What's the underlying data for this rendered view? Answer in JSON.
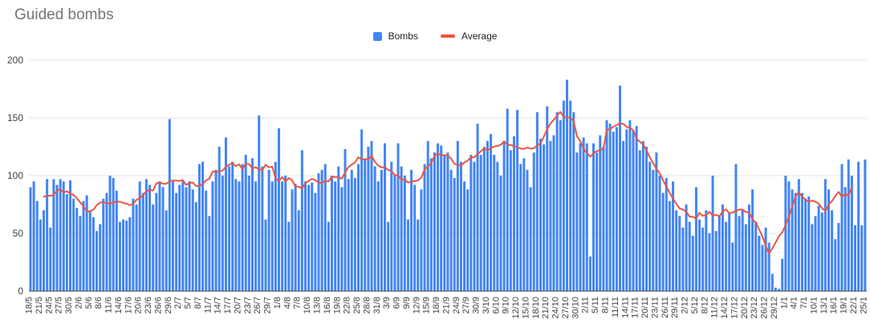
{
  "chart": {
    "title": "Guided bombs",
    "legend": {
      "bombs_label": "Bombs",
      "average_label": "Average"
    },
    "colors": {
      "bar": "#4285f4",
      "line": "#ea5545",
      "grid": "#e6e6e6",
      "baseline": "#424242",
      "axis_text": "#424242",
      "title_text": "#757575"
    }
  },
  "chart_data": {
    "type": "bar",
    "title": "Guided bombs",
    "xlabel": "",
    "ylabel": "",
    "ylim": [
      0,
      200
    ],
    "yticks": [
      0,
      50,
      100,
      150,
      200
    ],
    "grid": true,
    "legend_position": "top-center",
    "x_unit": "day",
    "tick_every": 3,
    "tick_labels": [
      "18/5",
      "21/5",
      "24/5",
      "27/5",
      "30/5",
      "2/6",
      "5/6",
      "8/6",
      "11/6",
      "14/6",
      "17/6",
      "20/6",
      "23/6",
      "26/6",
      "29/6",
      "2/7",
      "5/7",
      "8/7",
      "11/7",
      "14/7",
      "17/7",
      "20/7",
      "23/7",
      "26/7",
      "29/7",
      "1/8",
      "4/8",
      "7/8",
      "10/8",
      "13/8",
      "16/8",
      "19/8",
      "22/8",
      "25/8",
      "28/8",
      "31/8",
      "3/9",
      "6/9",
      "9/9",
      "12/9",
      "15/9",
      "18/9",
      "21/9",
      "24/9",
      "27/9",
      "30/9",
      "3/10",
      "6/10",
      "9/10",
      "12/10",
      "15/10",
      "18/10",
      "21/10",
      "24/10",
      "27/10",
      "30/10",
      "2/11",
      "5/11",
      "8/11",
      "11/11",
      "14/11",
      "17/11",
      "20/11",
      "23/11",
      "26/11",
      "29/11",
      "2/12",
      "5/12",
      "8/12",
      "11/12",
      "14/12",
      "17/12",
      "20/12",
      "23/12",
      "26/12",
      "29/12",
      "1/1",
      "4/1",
      "7/1",
      "10/1",
      "13/1",
      "16/1",
      "19/1",
      "22/1",
      "25/1"
    ],
    "series": [
      {
        "name": "Bombs",
        "type": "bar",
        "color": "#4285f4",
        "values": [
          90,
          95,
          78,
          62,
          70,
          97,
          55,
          97,
          92,
          97,
          95,
          84,
          96,
          80,
          72,
          65,
          78,
          83,
          70,
          64,
          52,
          58,
          80,
          85,
          100,
          98,
          87,
          60,
          62,
          61,
          64,
          80,
          75,
          95,
          85,
          97,
          92,
          75,
          85,
          95,
          90,
          70,
          149,
          95,
          85,
          92,
          95,
          90,
          95,
          88,
          77,
          110,
          112,
          87,
          65,
          95,
          105,
          125,
          100,
          133,
          108,
          112,
          97,
          95,
          110,
          118,
          100,
          115,
          95,
          152,
          108,
          62,
          105,
          95,
          112,
          141,
          95,
          100,
          60,
          88,
          93,
          70,
          122,
          95,
          92,
          94,
          85,
          102,
          105,
          110,
          60,
          100,
          95,
          108,
          90,
          123,
          97,
          105,
          98,
          110,
          140,
          115,
          125,
          130,
          108,
          95,
          105,
          128,
          60,
          112,
          100,
          128,
          108,
          100,
          62,
          105,
          92,
          62,
          88,
          110,
          130,
          115,
          120,
          128,
          126,
          118,
          120,
          105,
          98,
          130,
          112,
          95,
          88,
          118,
          112,
          145,
          118,
          125,
          130,
          136,
          118,
          112,
          100,
          130,
          158,
          122,
          134,
          157,
          110,
          115,
          105,
          90,
          120,
          155,
          132,
          127,
          160,
          130,
          135,
          155,
          148,
          165,
          183,
          165,
          155,
          120,
          128,
          133,
          128,
          30,
          128,
          120,
          135,
          125,
          148,
          145,
          138,
          142,
          178,
          130,
          140,
          148,
          139,
          143,
          122,
          130,
          125,
          112,
          105,
          120,
          100,
          85,
          98,
          78,
          95,
          70,
          65,
          55,
          75,
          60,
          48,
          90,
          62,
          55,
          70,
          50,
          100,
          52,
          65,
          75,
          60,
          68,
          42,
          110,
          65,
          70,
          58,
          75,
          88,
          60,
          48,
          40,
          55,
          42,
          15,
          3,
          2,
          28,
          100,
          95,
          88,
          85,
          97,
          85,
          80,
          82,
          58,
          65,
          74,
          68,
          97,
          88,
          70,
          45,
          59,
          110,
          90,
          114,
          100,
          57,
          112,
          57,
          114
        ]
      },
      {
        "name": "Average",
        "type": "line",
        "color": "#ea5545",
        "derived_from": "Bombs",
        "derivation": "centered moving average",
        "window": 9
      }
    ]
  }
}
